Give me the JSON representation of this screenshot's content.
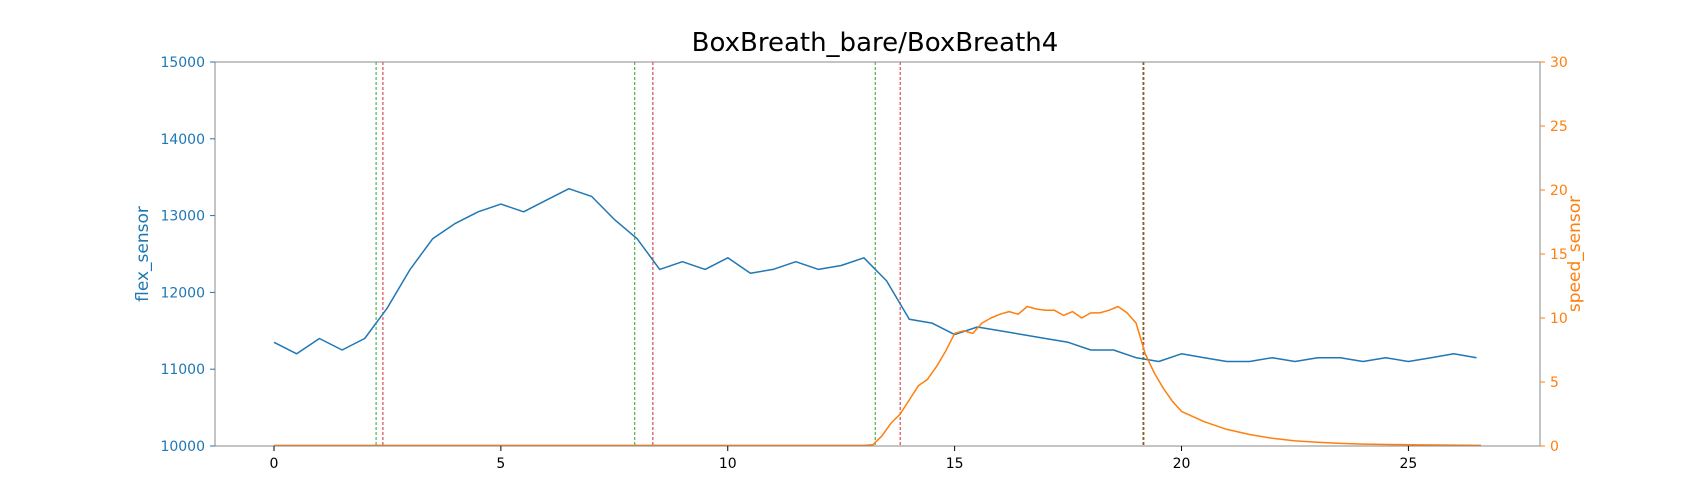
{
  "chart_data": {
    "type": "line",
    "title": "BoxBreath_bare/BoxBreath4",
    "xlabel": "",
    "ylabel": "flex_sensor",
    "ylabel_right": "speed_sensor",
    "xlim": [
      -1.3,
      27.9
    ],
    "ylim": [
      10000,
      15000
    ],
    "ylim_right": [
      0,
      30
    ],
    "x_ticks": [
      0,
      5,
      10,
      15,
      20,
      25
    ],
    "y_ticks": [
      10000,
      11000,
      12000,
      13000,
      14000,
      15000
    ],
    "y_ticks_right": [
      0,
      5,
      10,
      15,
      20,
      25,
      30
    ],
    "grid": false,
    "colors": {
      "flex": "#1f77b4",
      "speed": "#ff7f0e",
      "left_axis": "#1f77b4",
      "right_axis": "#ff7f0e",
      "vline_green": "#2ca02c",
      "vline_red": "#d62728",
      "frame": "#888888"
    },
    "vlines": [
      {
        "x": 2.25,
        "color": "green"
      },
      {
        "x": 2.4,
        "color": "red"
      },
      {
        "x": 7.95,
        "color": "green"
      },
      {
        "x": 8.35,
        "color": "red"
      },
      {
        "x": 13.25,
        "color": "green"
      },
      {
        "x": 13.8,
        "color": "red"
      },
      {
        "x": 19.15,
        "color": "green"
      },
      {
        "x": 19.17,
        "color": "red"
      }
    ],
    "series": [
      {
        "axis": "left",
        "x": [
          0,
          0.5,
          1,
          1.5,
          2,
          2.5,
          3,
          3.5,
          4,
          4.5,
          5,
          5.5,
          6,
          6.5,
          7,
          7.5,
          8,
          8.5,
          9,
          9.5,
          10,
          10.5,
          11,
          11.5,
          12,
          12.5,
          13,
          13.5,
          14,
          14.5,
          15,
          15.5,
          16,
          16.5,
          17,
          17.5,
          18,
          18.5,
          19,
          19.5,
          20,
          20.5,
          21,
          21.5,
          22,
          22.5,
          23,
          23.5,
          24,
          24.5,
          25,
          25.5,
          26,
          26.5
        ],
        "values": [
          11350,
          11200,
          11400,
          11250,
          11400,
          11800,
          12300,
          12700,
          12900,
          13050,
          13150,
          13050,
          13200,
          13350,
          13250,
          12950,
          12700,
          12300,
          12400,
          12300,
          12450,
          12250,
          12300,
          12400,
          12300,
          12350,
          12450,
          12150,
          11650,
          11600,
          11450,
          11550,
          11500,
          11450,
          11400,
          11350,
          11250,
          11250,
          11150,
          11100,
          11200,
          11150,
          11100,
          11100,
          11150,
          11100,
          11150,
          11150,
          11100,
          11150,
          11100,
          11150,
          11200,
          11150
        ]
      },
      {
        "axis": "right",
        "x": [
          0,
          5,
          10,
          13,
          13.2,
          13.4,
          13.6,
          13.8,
          14,
          14.2,
          14.4,
          14.6,
          14.8,
          15,
          15.2,
          15.4,
          15.6,
          15.8,
          16,
          16.2,
          16.4,
          16.6,
          16.8,
          17,
          17.2,
          17.4,
          17.6,
          17.8,
          18,
          18.2,
          18.4,
          18.6,
          18.8,
          19,
          19.2,
          19.4,
          19.6,
          19.8,
          20,
          20.5,
          21,
          21.5,
          22,
          22.5,
          23,
          23.5,
          24,
          25,
          26.6
        ],
        "values": [
          0.05,
          0.05,
          0.05,
          0.05,
          0.1,
          0.8,
          1.8,
          2.5,
          3.6,
          4.7,
          5.2,
          6.2,
          7.4,
          8.8,
          9.0,
          8.8,
          9.6,
          10.0,
          10.3,
          10.5,
          10.3,
          10.9,
          10.7,
          10.6,
          10.6,
          10.2,
          10.5,
          10.0,
          10.4,
          10.4,
          10.6,
          10.9,
          10.4,
          9.6,
          7.2,
          5.7,
          4.5,
          3.5,
          2.7,
          1.9,
          1.3,
          0.9,
          0.6,
          0.4,
          0.3,
          0.2,
          0.15,
          0.1,
          0.05
        ]
      }
    ]
  }
}
